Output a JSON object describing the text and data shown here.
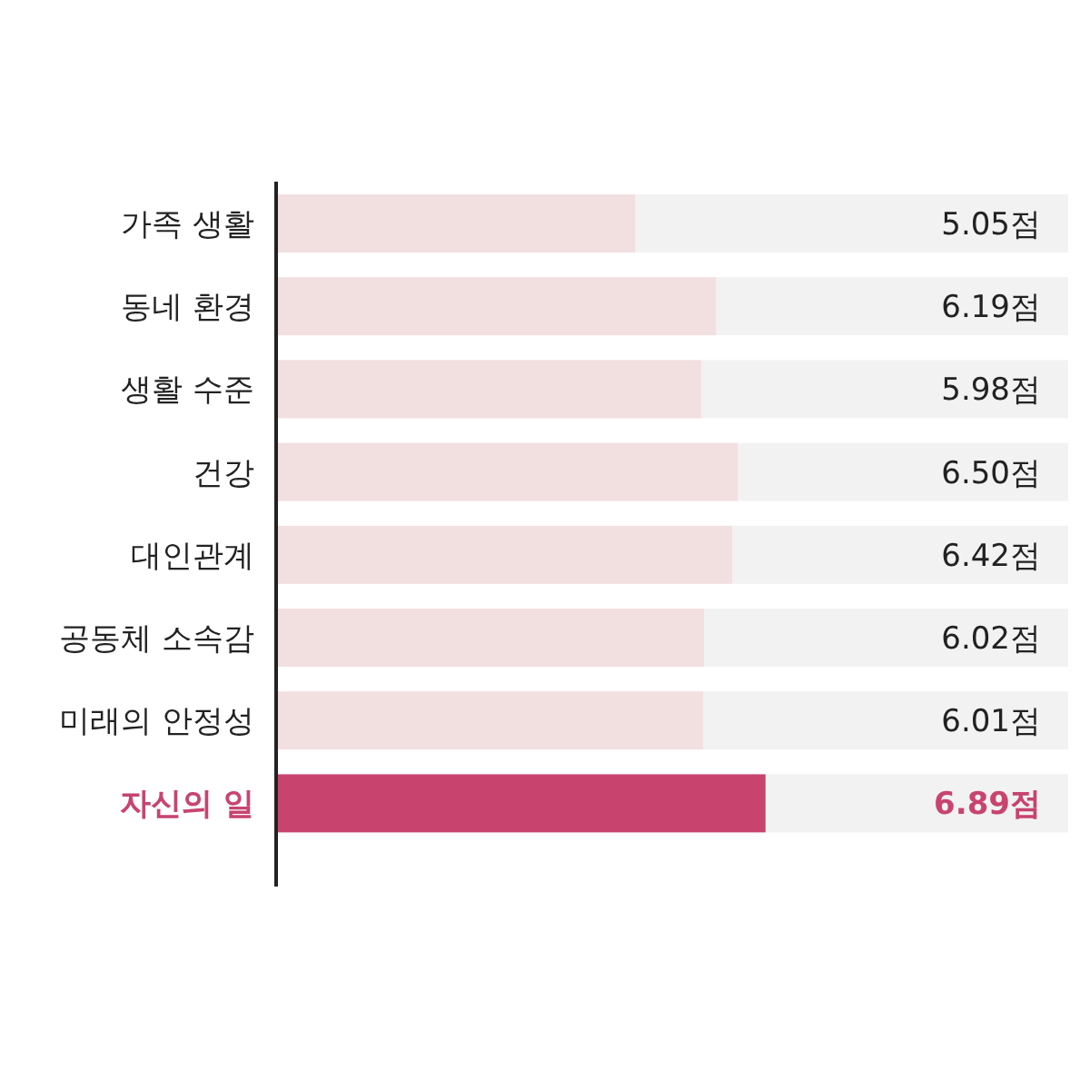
{
  "chart_data": {
    "type": "bar",
    "orientation": "horizontal",
    "data_labels": true,
    "categories": [
      "가족 생활",
      "동네 환경",
      "생활 수준",
      "건강",
      "대인관계",
      "공동체 소속감",
      "미래의 안정성",
      "자신의 일"
    ],
    "values": [
      5.05,
      6.19,
      5.98,
      6.5,
      6.42,
      6.02,
      6.01,
      6.89
    ],
    "value_labels": [
      "5.05점",
      "6.19점",
      "5.98점",
      "6.50점",
      "6.42점",
      "6.02점",
      "6.01점",
      "6.89점"
    ],
    "colors": [
      "#f2dfe0",
      "#f2dfe0",
      "#f2dfe0",
      "#f2dfe0",
      "#f2dfe0",
      "#f2dfe0",
      "#f2dfe0",
      "#c8446f"
    ]
  }
}
